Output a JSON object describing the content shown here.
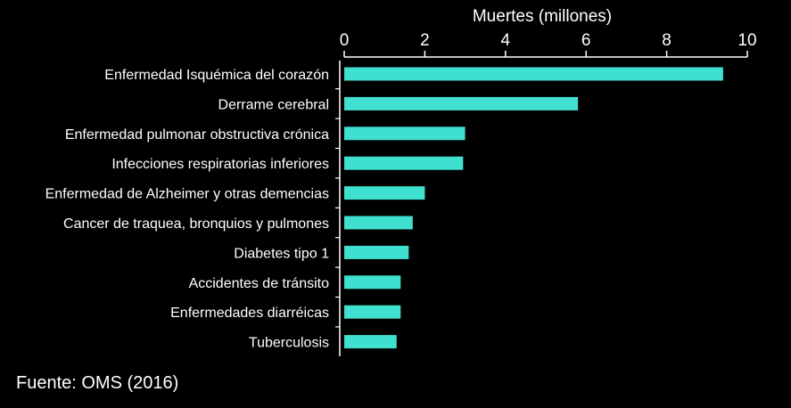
{
  "chart_data": {
    "type": "bar",
    "orientation": "horizontal",
    "xlabel": "Muertes (millones)",
    "xlim": [
      0,
      10
    ],
    "xticks": [
      0,
      2,
      4,
      6,
      8,
      10
    ],
    "categories": [
      "Enfermedad Isquémica del corazón",
      "Derrame cerebral",
      "Enfermedad pulmonar obstructiva crónica",
      "Infecciones respiratorias inferiores",
      "Enfermedad de Alzheimer y otras demencias",
      "Cancer de traquea, bronquios y pulmones",
      "Diabetes tipo 1",
      "Accidentes de tránsito",
      "Enfermedades diarréicas",
      "Tuberculosis"
    ],
    "values": [
      9.4,
      5.8,
      3.0,
      2.95,
      2.0,
      1.7,
      1.6,
      1.4,
      1.4,
      1.3
    ],
    "bar_color": "#40E0D0",
    "background": "#000000",
    "text_color": "#ffffff",
    "grid": false,
    "axis_position": "top"
  },
  "source": "Fuente: OMS (2016)"
}
